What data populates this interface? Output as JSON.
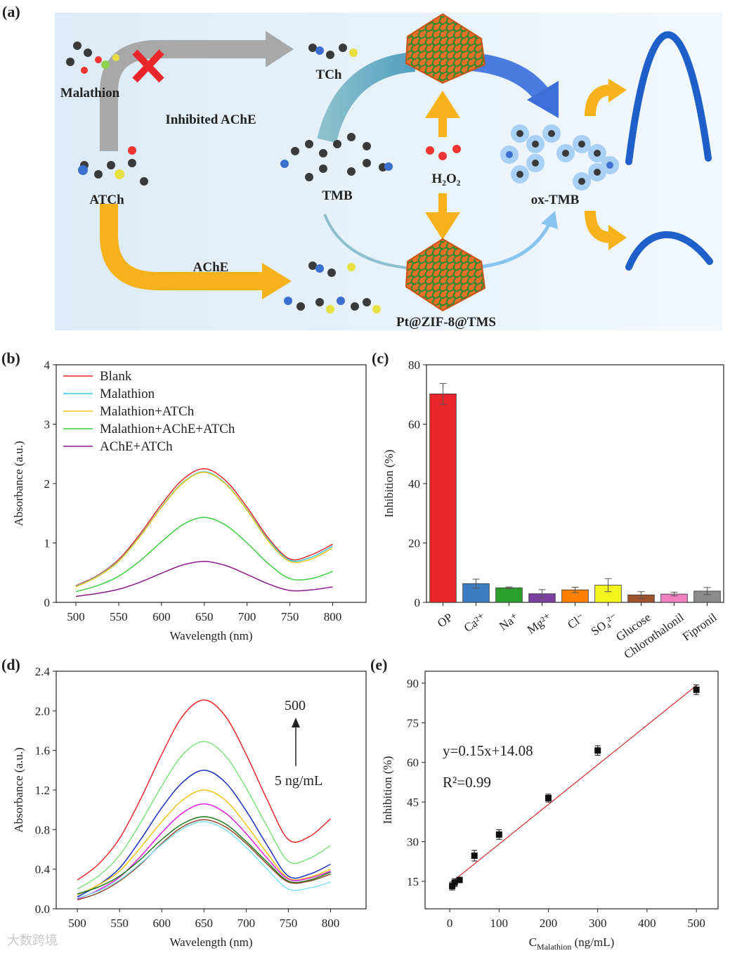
{
  "diagram": {
    "label": "(a)",
    "texts": {
      "malathion": "Malathion",
      "inhibited": "Inhibited AChE",
      "tch": "TCh",
      "atch": "ATCh",
      "ache": "AChE",
      "tmb": "TMB",
      "h2o2": "H₂O₂",
      "oxtmb": "ox-TMB",
      "nano": "Pt@ZIF-8@TMS"
    },
    "watermark": "大数跨境"
  },
  "chart_data": [
    {
      "type": "line",
      "label": "(b)",
      "x_label": "Wavelength (nm)",
      "y_label": "Absorbance (a.u.)",
      "x": [
        500,
        525,
        550,
        575,
        600,
        625,
        650,
        675,
        700,
        725,
        750,
        775,
        800
      ],
      "xlim": [
        477,
        839
      ],
      "xticks": [
        500,
        550,
        600,
        650,
        700,
        750,
        800
      ],
      "ylim": [
        0,
        4
      ],
      "yticks": [
        0,
        1,
        2,
        3,
        4
      ],
      "legend": "upper left",
      "series": [
        {
          "name": "Blank",
          "color": "#e8262b",
          "values": [
            0.28,
            0.45,
            0.72,
            1.15,
            1.65,
            2.07,
            2.25,
            2.05,
            1.6,
            1.08,
            0.73,
            0.8,
            0.98
          ]
        },
        {
          "name": "Malathion",
          "color": "#3cc6e0",
          "values": [
            0.27,
            0.44,
            0.7,
            1.12,
            1.61,
            2.02,
            2.2,
            2.0,
            1.56,
            1.05,
            0.71,
            0.76,
            0.95
          ]
        },
        {
          "name": "Malathion+ATCh",
          "color": "#f2c318",
          "values": [
            0.26,
            0.43,
            0.69,
            1.11,
            1.6,
            2.01,
            2.19,
            1.99,
            1.55,
            1.03,
            0.69,
            0.73,
            0.92
          ]
        },
        {
          "name": "Malathion+AChE+ATCh",
          "color": "#3ccf3c",
          "values": [
            0.18,
            0.28,
            0.44,
            0.7,
            1.02,
            1.31,
            1.43,
            1.3,
            1.0,
            0.65,
            0.4,
            0.4,
            0.52
          ]
        },
        {
          "name": "AChE+ATCh",
          "color": "#8b1a8b",
          "values": [
            0.1,
            0.15,
            0.22,
            0.34,
            0.49,
            0.63,
            0.69,
            0.62,
            0.47,
            0.31,
            0.2,
            0.21,
            0.26
          ]
        }
      ]
    },
    {
      "type": "bar",
      "label": "(c)",
      "y_label": "Inhibition (%)",
      "categories": [
        "OP",
        "Ca²⁺",
        "Na⁺",
        "Mg²⁺",
        "Cl⁻",
        "SO₄²⁻",
        "Glucose",
        "Chlorothalonil",
        "Fipronil"
      ],
      "values": [
        70.2,
        6.3,
        4.9,
        2.9,
        4.2,
        5.8,
        2.5,
        2.8,
        3.8
      ],
      "errors": [
        3.5,
        1.5,
        0.3,
        1.4,
        0.9,
        2.2,
        1.1,
        0.6,
        1.2
      ],
      "colors": [
        "#e8262b",
        "#3a7dc0",
        "#2ca02c",
        "#7b3f9e",
        "#ff8000",
        "#f5f51e",
        "#a0522d",
        "#f080c0",
        "#8c8c8c"
      ],
      "ylim": [
        0,
        80
      ],
      "yticks": [
        0,
        20,
        40,
        60,
        80
      ]
    },
    {
      "type": "line",
      "label": "(d)",
      "x_label": "Wavelength (nm)",
      "y_label": "Absorbance (a.u.)",
      "x": [
        500,
        525,
        550,
        575,
        600,
        625,
        650,
        675,
        700,
        725,
        750,
        775,
        800
      ],
      "xlim": [
        475,
        842
      ],
      "xticks": [
        500,
        550,
        600,
        650,
        700,
        750,
        800
      ],
      "ylim": [
        0,
        2.4
      ],
      "yticks": [
        {
          "value": 0,
          "label": "0.0"
        },
        0.4,
        0.8,
        1.2,
        1.6,
        {
          "value": 2,
          "label": "2.0"
        },
        2.4
      ],
      "annotations": [
        "500",
        "5 ng/mL"
      ],
      "series": [
        {
          "color": "#e8262b",
          "values": [
            0.29,
            0.45,
            0.71,
            1.11,
            1.56,
            1.95,
            2.11,
            1.95,
            1.56,
            1.1,
            0.7,
            0.73,
            0.91
          ]
        },
        {
          "color": "#7ee07e",
          "values": [
            0.2,
            0.33,
            0.54,
            0.87,
            1.24,
            1.56,
            1.69,
            1.55,
            1.22,
            0.83,
            0.48,
            0.51,
            0.64
          ]
        },
        {
          "color": "#1a2fbf",
          "values": [
            0.12,
            0.24,
            0.41,
            0.7,
            1.02,
            1.28,
            1.4,
            1.28,
            0.99,
            0.64,
            0.33,
            0.35,
            0.45
          ]
        },
        {
          "color": "#f2c318",
          "values": [
            0.14,
            0.24,
            0.38,
            0.62,
            0.88,
            1.1,
            1.2,
            1.1,
            0.85,
            0.56,
            0.31,
            0.32,
            0.4
          ]
        },
        {
          "color": "#e020e0",
          "values": [
            0.1,
            0.19,
            0.32,
            0.53,
            0.77,
            0.97,
            1.06,
            0.97,
            0.76,
            0.51,
            0.3,
            0.31,
            0.38
          ]
        },
        {
          "color": "#1e7a1e",
          "values": [
            0.15,
            0.22,
            0.33,
            0.5,
            0.7,
            0.86,
            0.93,
            0.86,
            0.68,
            0.47,
            0.28,
            0.29,
            0.37
          ]
        },
        {
          "color": "#8b4a2b",
          "values": [
            0.09,
            0.16,
            0.28,
            0.45,
            0.66,
            0.83,
            0.9,
            0.83,
            0.66,
            0.45,
            0.27,
            0.28,
            0.35
          ]
        },
        {
          "color": "#7fe0f0",
          "values": [
            0.11,
            0.18,
            0.29,
            0.46,
            0.65,
            0.81,
            0.88,
            0.8,
            0.62,
            0.4,
            0.2,
            0.21,
            0.27
          ]
        }
      ]
    },
    {
      "type": "scatter",
      "label": "(e)",
      "x_label": {
        "main": "C",
        "sub": "Malathion",
        "unit": " (ng/mL)"
      },
      "y_label": "Inhibition (%)",
      "x": [
        5,
        10,
        20,
        50,
        100,
        200,
        300,
        500
      ],
      "values": [
        13.2,
        14.5,
        15.5,
        24.7,
        32.7,
        46.5,
        64.5,
        87.5
      ],
      "errors": [
        1.5,
        1.5,
        1.0,
        2.0,
        1.8,
        1.5,
        1.8,
        1.8
      ],
      "fit": {
        "slope": 0.15,
        "intercept": 14.08,
        "color": "#d9262b"
      },
      "annotations": [
        "y=0.15x+14.08",
        "R²=0.99"
      ],
      "xlim": [
        -50,
        544
      ],
      "xticks": [
        0,
        100,
        200,
        300,
        400,
        500
      ],
      "ylim": [
        4.6,
        94.5
      ],
      "yticks": [
        15,
        30,
        45,
        60,
        75,
        90
      ]
    }
  ]
}
